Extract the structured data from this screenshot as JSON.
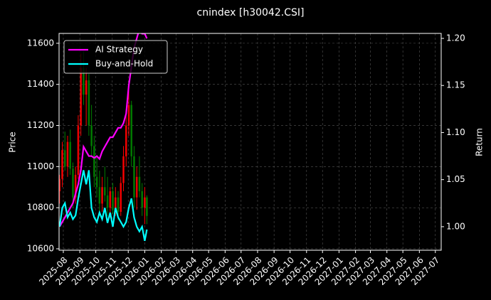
{
  "chart_data": {
    "type": "candlestick",
    "title": "cnindex [h30042.CSI]",
    "ylabel": "Price",
    "y2label": "Return",
    "x": [
      "2025-07-25",
      "2025-07-30",
      "2025-08-04",
      "2025-08-09",
      "2025-08-14",
      "2025-08-19",
      "2025-08-24",
      "2025-08-29",
      "2025-09-03",
      "2025-09-08",
      "2025-09-13",
      "2025-09-18",
      "2025-09-23",
      "2025-09-28",
      "2025-10-03",
      "2025-10-08",
      "2025-10-13",
      "2025-10-18",
      "2025-10-23",
      "2025-10-28",
      "2025-11-02",
      "2025-11-07",
      "2025-11-12",
      "2025-11-17",
      "2025-11-22",
      "2025-11-27",
      "2025-12-02",
      "2025-12-07",
      "2025-12-12",
      "2025-12-17",
      "2025-12-22",
      "2025-12-27",
      "2026-01-01",
      "2026-01-05"
    ],
    "open": [
      10880,
      10940,
      11080,
      11000,
      11120,
      10990,
      10850,
      10960,
      11200,
      11480,
      11350,
      11420,
      11200,
      11100,
      10950,
      10900,
      10820,
      10900,
      10860,
      10800,
      10880,
      10790,
      10850,
      10780,
      10920,
      11050,
      11200,
      11300,
      11050,
      10850,
      10950,
      10880,
      10800,
      10850
    ],
    "high": [
      10960,
      11120,
      11170,
      11150,
      11180,
      11020,
      11000,
      11250,
      11550,
      11560,
      11480,
      11450,
      11300,
      11150,
      11050,
      10980,
      10950,
      11000,
      10950,
      10900,
      10920,
      10900,
      10880,
      10950,
      11100,
      11250,
      11380,
      11320,
      11100,
      11000,
      11050,
      10920,
      10900,
      10860
    ],
    "low": [
      10820,
      10900,
      10980,
      10950,
      10960,
      10800,
      10820,
      10940,
      11150,
      11300,
      11200,
      11150,
      11050,
      10900,
      10850,
      10780,
      10780,
      10830,
      10760,
      10750,
      10770,
      10760,
      10740,
      10760,
      10880,
      11000,
      11150,
      11000,
      10800,
      10790,
      10850,
      10760,
      10720,
      10720
    ],
    "close": [
      10940,
      11080,
      11000,
      11120,
      10990,
      10850,
      10960,
      11200,
      11480,
      11350,
      11420,
      11200,
      11100,
      10950,
      10900,
      10820,
      10900,
      10860,
      10800,
      10880,
      10790,
      10850,
      10780,
      10920,
      11050,
      11200,
      11300,
      11050,
      10850,
      10950,
      10880,
      10800,
      10850,
      10760
    ],
    "up_color": "#ff0000",
    "down_color": "#008000",
    "series": [
      {
        "name": "AI Strategy",
        "color": "#ff00ff",
        "axis": "y2",
        "values": [
          1.0,
          1.005,
          1.01,
          1.015,
          1.02,
          1.025,
          1.035,
          1.045,
          1.06,
          1.085,
          1.08,
          1.075,
          1.075,
          1.073,
          1.075,
          1.072,
          1.08,
          1.085,
          1.09,
          1.095,
          1.095,
          1.1,
          1.105,
          1.105,
          1.11,
          1.12,
          1.15,
          1.17,
          1.19,
          1.2,
          1.21,
          1.205,
          1.205,
          1.2
        ]
      },
      {
        "name": "Buy-and-Hold",
        "color": "#00ffff",
        "axis": "y2",
        "values": [
          1.0,
          1.02,
          1.025,
          1.01,
          1.015,
          1.008,
          1.012,
          1.03,
          1.045,
          1.06,
          1.045,
          1.06,
          1.02,
          1.01,
          1.005,
          1.015,
          1.008,
          1.02,
          1.004,
          1.015,
          1.0,
          1.02,
          1.01,
          1.005,
          1.0,
          1.005,
          1.02,
          1.03,
          1.01,
          1.0,
          0.995,
          1.0,
          0.985,
          0.997
        ]
      }
    ],
    "xlim": [
      "2025-07-24",
      "2027-07-12"
    ],
    "xticks": [
      "2025-08",
      "2025-09",
      "2025-10",
      "2025-11",
      "2025-12",
      "2026-01",
      "2026-02",
      "2026-03",
      "2026-04",
      "2026-05",
      "2026-06",
      "2026-07",
      "2026-08",
      "2026-09",
      "2026-10",
      "2026-11",
      "2026-12",
      "2027-01",
      "2027-02",
      "2027-03",
      "2027-04",
      "2027-05",
      "2027-06",
      "2027-07"
    ],
    "ylim": [
      10593,
      11648
    ],
    "yticks": [
      10600,
      10800,
      11000,
      11200,
      11400,
      11600
    ],
    "y2lim": [
      0.975,
      1.2053
    ],
    "y2ticks": [
      {
        "value": 1.0,
        "label": "1.00"
      },
      {
        "value": 1.05,
        "label": "1.05"
      },
      {
        "value": 1.1,
        "label": "1.10"
      },
      {
        "value": 1.15,
        "label": "1.15"
      },
      {
        "value": 1.2,
        "label": "1.20"
      }
    ],
    "grid": true,
    "legend": "upper left"
  }
}
